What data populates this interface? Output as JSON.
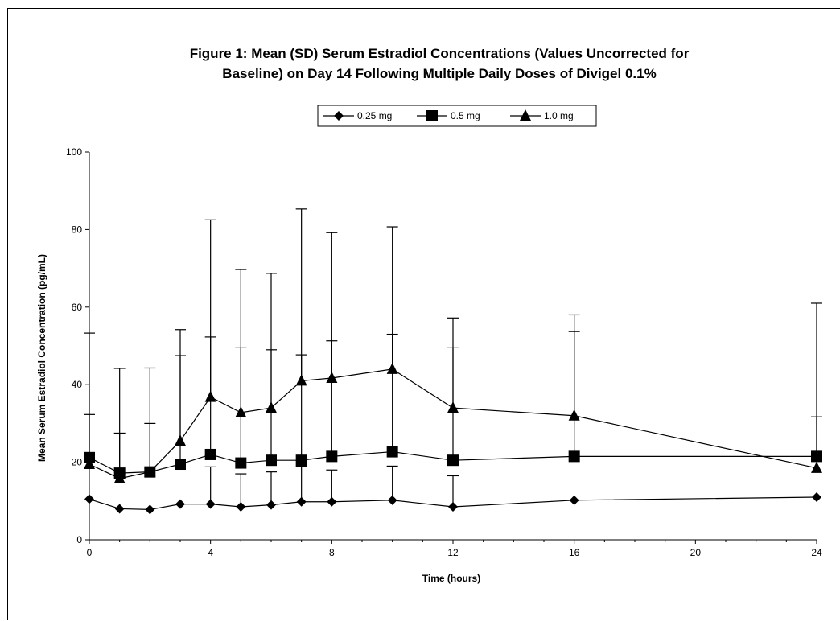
{
  "chart_data": {
    "type": "line",
    "title": "Figure 1:  Mean (SD) Serum Estradiol Concentrations (Values Uncorrected for Baseline) on Day 14 Following Multiple Daily Doses of Divigel 0.1%",
    "title_lines": [
      "Figure 1:  Mean (SD) Serum Estradiol Concentrations (Values Uncorrected for",
      "Baseline) on Day 14 Following Multiple Daily Doses of Divigel 0.1%"
    ],
    "xlabel": "Time (hours)",
    "ylabel": "Mean Serum Estradiol Concentration (pg/mL)",
    "xlim": [
      0,
      24
    ],
    "ylim": [
      0,
      100
    ],
    "xticks": [
      0,
      4,
      8,
      12,
      16,
      20,
      24
    ],
    "yticks": [
      0,
      20,
      40,
      60,
      80,
      100
    ],
    "grid": false,
    "legend_position": "top-center",
    "error_bars": "upper SD caps",
    "x": [
      0,
      1,
      2,
      3,
      4,
      5,
      6,
      7,
      8,
      10,
      12,
      16,
      24
    ],
    "series": [
      {
        "name": "0.25 mg",
        "marker": "diamond",
        "values": [
          10.5,
          8,
          7.8,
          9.2,
          9.2,
          8.5,
          9,
          9.8,
          9.8,
          10.2,
          8.5,
          10.2,
          11
        ],
        "upper": [
          null,
          null,
          null,
          null,
          18.8,
          17,
          17.5,
          19,
          18,
          19,
          16.5,
          null,
          null
        ]
      },
      {
        "name": "0.5 mg",
        "marker": "square",
        "values": [
          21.2,
          17.2,
          17.5,
          19.5,
          22,
          19.8,
          20.5,
          20.5,
          21.5,
          22.7,
          20.5,
          21.5,
          21.5
        ],
        "upper": [
          32.3,
          27.5,
          30,
          47.5,
          52.3,
          49.5,
          49,
          47.7,
          51.3,
          53,
          49.5,
          53.7,
          31.7
        ]
      },
      {
        "name": "1.0 mg",
        "marker": "triangle",
        "values": [
          19.5,
          15.8,
          17.5,
          25.5,
          36.8,
          32.8,
          34,
          41,
          41.7,
          44,
          34,
          32,
          18.5
        ],
        "upper": [
          53.3,
          44.2,
          44.3,
          54.2,
          82.5,
          69.7,
          68.7,
          85.3,
          79.2,
          80.7,
          57.2,
          58,
          61
        ]
      }
    ]
  }
}
